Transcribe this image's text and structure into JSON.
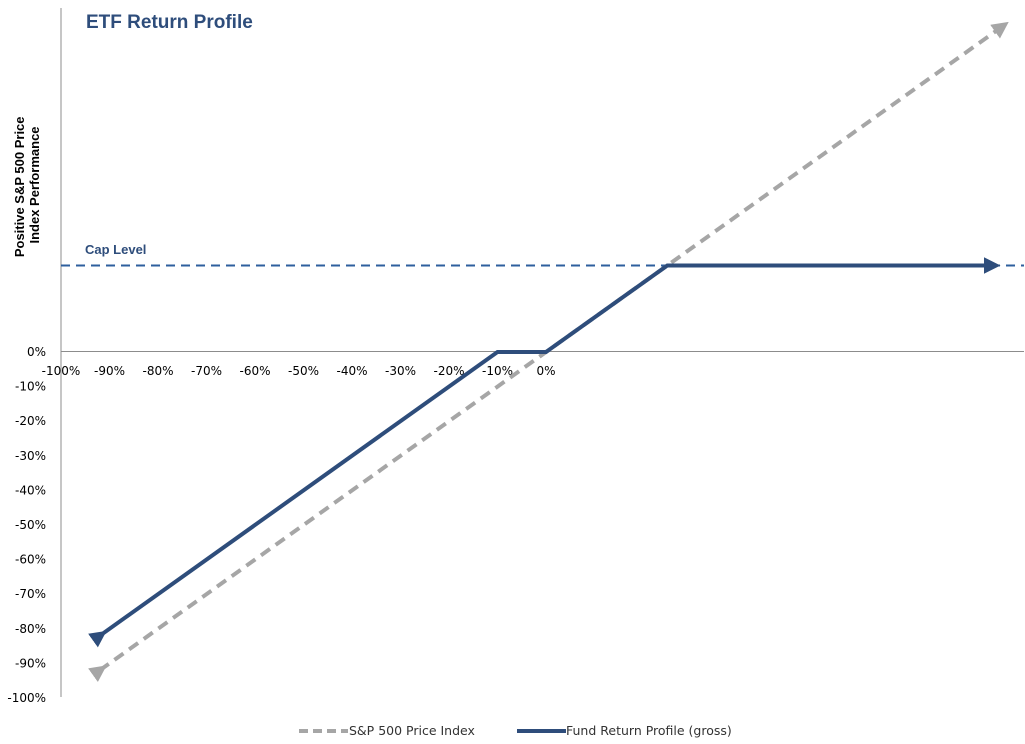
{
  "chart_data": {
    "type": "line",
    "title": "ETF Return Profile",
    "ylabel": "Positive S&P 500 Price Index Performance",
    "xlabel": "",
    "x_tick_labels": [
      "-100%",
      "-90%",
      "-80%",
      "-70%",
      "-60%",
      "-50%",
      "-40%",
      "-30%",
      "-20%",
      "-10%",
      "0%"
    ],
    "x_ticks": [
      -100,
      -90,
      -80,
      -70,
      -60,
      -50,
      -40,
      -30,
      -20,
      -10,
      0
    ],
    "y_tick_labels": [
      "0%",
      "-10%",
      "-20%",
      "-30%",
      "-40%",
      "-50%",
      "-60%",
      "-70%",
      "-80%",
      "-90%",
      "-100%"
    ],
    "y_ticks": [
      0,
      -10,
      -20,
      -30,
      -40,
      -50,
      -60,
      -70,
      -80,
      -90,
      -100
    ],
    "xlim": [
      -103,
      100
    ],
    "ylim": [
      -100,
      97
    ],
    "grid": false,
    "legend": "bottom",
    "cap_level": {
      "label": "Cap Level",
      "value": 25
    },
    "series": [
      {
        "name": "S&P 500 Price Index",
        "color": "#a6a6a6",
        "style": "dashed",
        "points": [
          [
            -92,
            -92
          ],
          [
            94,
            94
          ]
        ]
      },
      {
        "name": "Fund Return Profile (gross)",
        "color": "#2e4d7b",
        "style": "solid",
        "points": [
          [
            -92,
            -82
          ],
          [
            -10,
            0
          ],
          [
            0,
            0
          ],
          [
            25,
            25
          ],
          [
            92,
            25
          ]
        ]
      }
    ]
  }
}
